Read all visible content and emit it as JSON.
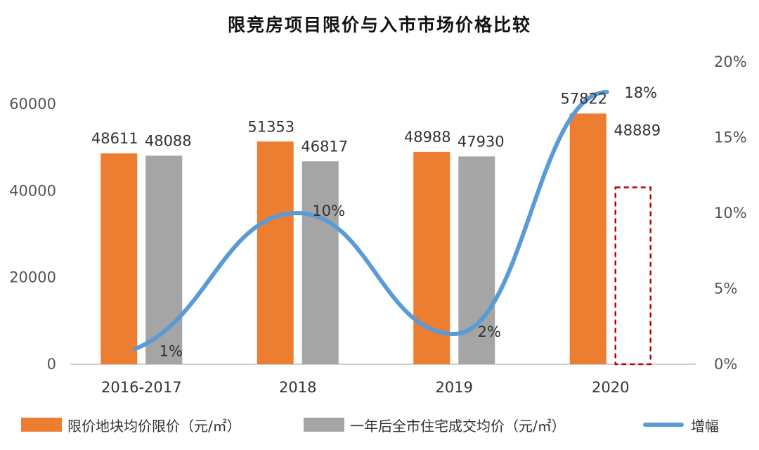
{
  "title": "限竞房项目限价与入市市场价格比较",
  "colors": {
    "limit": "#ED7D31",
    "market": "#A5A5A5",
    "growth": "#5B9BD5",
    "projected": "#C00000",
    "axis": "#BFBFBF"
  },
  "legend": {
    "limit": "限价地块均价限价（元/㎡）",
    "market": "一年后全市住宅成交均价（元/㎡）",
    "growth": "增幅"
  },
  "chart_data": {
    "type": "bar",
    "title": "限竞房项目限价与入市市场价格比较",
    "categories": [
      "2016-2017",
      "2018",
      "2019",
      "2020"
    ],
    "series": [
      {
        "name": "限价地块均价限价（元/㎡）",
        "values": [
          48611,
          51353,
          48988,
          57822
        ]
      },
      {
        "name": "一年后全市住宅成交均价（元/㎡）",
        "values": [
          48088,
          46817,
          47930,
          48889
        ]
      }
    ],
    "line_series": {
      "name": "增幅",
      "values": [
        1,
        10,
        2,
        18
      ],
      "labels": [
        "1%",
        "10%",
        "2%",
        "18%"
      ],
      "axis": "right"
    },
    "projected_last_market_bar": true,
    "y_left": {
      "ticks": [
        "0",
        "20000",
        "40000",
        "60000"
      ],
      "ylim": [
        0,
        60000
      ]
    },
    "y_right": {
      "ticks": [
        "0%",
        "5%",
        "10%",
        "15%",
        "20%"
      ],
      "ylim": [
        0,
        20
      ]
    },
    "grid": false,
    "legend_position": "bottom"
  }
}
